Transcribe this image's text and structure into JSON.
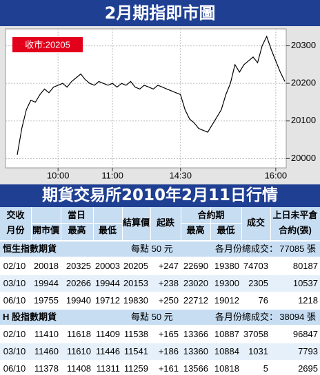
{
  "chart_data": {
    "type": "line",
    "title": "2月期指即市圖",
    "annotation": "收市:20205",
    "categories": [
      null,
      null,
      null,
      null,
      null,
      null,
      null,
      null,
      null,
      "10:00",
      null,
      null,
      null,
      null,
      null,
      null,
      null,
      null,
      null,
      null,
      null,
      "11:00",
      null,
      null,
      null,
      null,
      null,
      null,
      null,
      null,
      null,
      null,
      null,
      null,
      null,
      null,
      "14:30",
      null,
      null,
      null,
      null,
      null,
      null,
      null,
      null,
      null,
      null,
      null,
      null,
      null,
      null,
      null,
      null,
      null,
      null,
      null,
      null,
      "16:00",
      null,
      null
    ],
    "values": [
      20010,
      20080,
      20130,
      20155,
      20150,
      20170,
      20185,
      20175,
      20190,
      20195,
      20200,
      20190,
      20205,
      20215,
      20225,
      20210,
      20200,
      20195,
      20205,
      20200,
      20195,
      20200,
      20190,
      20200,
      20195,
      20205,
      20190,
      20185,
      20195,
      20190,
      20185,
      20195,
      20190,
      20185,
      20180,
      20175,
      20170,
      20130,
      20105,
      20095,
      20080,
      20075,
      20070,
      20090,
      20110,
      20130,
      20170,
      20200,
      20250,
      20230,
      20250,
      20260,
      20270,
      20255,
      20300,
      20325,
      20290,
      20260,
      20230,
      20205
    ],
    "color": "#000000",
    "ylim": [
      19975,
      20345
    ],
    "yticks": [
      20000,
      20100,
      20200,
      20300
    ],
    "grid": true
  },
  "table": {
    "title": "期貨交易所2010年2月11日行情",
    "header": [
      "交收",
      "月份",
      "當日",
      "開市價",
      "最高",
      "最低",
      "結算價",
      "起跌",
      "合約期",
      "最高",
      "最低",
      "成交",
      "上日未平倉",
      "合約(張)"
    ],
    "sections": [
      {
        "name": "恒生指數期貨",
        "note": "每點 50 元",
        "total_label": "各月份總成交：",
        "total": "77085 張",
        "rows": [
          [
            "02/10",
            "20018",
            "20325",
            "20003",
            "20205",
            "+247",
            "22690",
            "19380",
            "74703",
            "80187"
          ],
          [
            "03/10",
            "19944",
            "20266",
            "19944",
            "20153",
            "+238",
            "23020",
            "19300",
            "2305",
            "10537"
          ],
          [
            "06/10",
            "19755",
            "19940",
            "19712",
            "19830",
            "+250",
            "22712",
            "19012",
            "76",
            "1218"
          ]
        ]
      },
      {
        "name": "H 股指數期貨",
        "note": "每點 50 元",
        "total_label": "各月份總成交：",
        "total": "38094 張",
        "rows": [
          [
            "02/10",
            "11410",
            "11618",
            "11409",
            "11538",
            "+165",
            "13366",
            "10887",
            "37058",
            "96847"
          ],
          [
            "03/10",
            "11460",
            "11610",
            "11446",
            "11541",
            "+186",
            "13360",
            "10884",
            "1031",
            "7793"
          ],
          [
            "06/10",
            "11378",
            "11408",
            "11311",
            "11259",
            "+161",
            "13566",
            "10818",
            "5",
            "2695"
          ]
        ]
      }
    ]
  }
}
